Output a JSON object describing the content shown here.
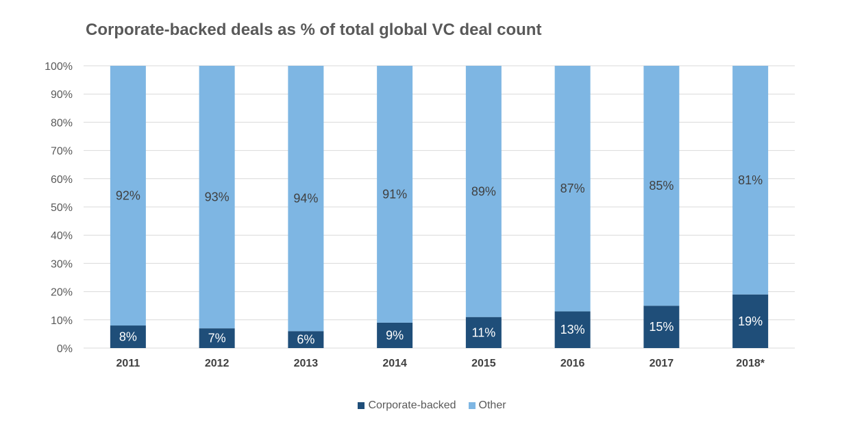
{
  "chart_data": {
    "type": "bar",
    "stacked": true,
    "title": "Corporate-backed deals as % of total global VC deal count",
    "xlabel": "",
    "ylabel": "",
    "ylim": [
      0,
      100
    ],
    "yticks": [
      "0%",
      "10%",
      "20%",
      "30%",
      "40%",
      "50%",
      "60%",
      "70%",
      "80%",
      "90%",
      "100%"
    ],
    "grid": true,
    "legend_position": "bottom",
    "categories": [
      "2011",
      "2012",
      "2013",
      "2014",
      "2015",
      "2016",
      "2017",
      "2018*"
    ],
    "series": [
      {
        "name": "Corporate-backed",
        "color": "#1f4e79",
        "values": [
          8,
          7,
          6,
          9,
          11,
          13,
          15,
          19
        ],
        "labels": [
          "8%",
          "7%",
          "6%",
          "9%",
          "11%",
          "13%",
          "15%",
          "19%"
        ]
      },
      {
        "name": "Other",
        "color": "#7eb6e3",
        "values": [
          92,
          93,
          94,
          91,
          89,
          87,
          85,
          81
        ],
        "labels": [
          "92%",
          "93%",
          "94%",
          "91%",
          "89%",
          "87%",
          "85%",
          "81%"
        ]
      }
    ]
  }
}
